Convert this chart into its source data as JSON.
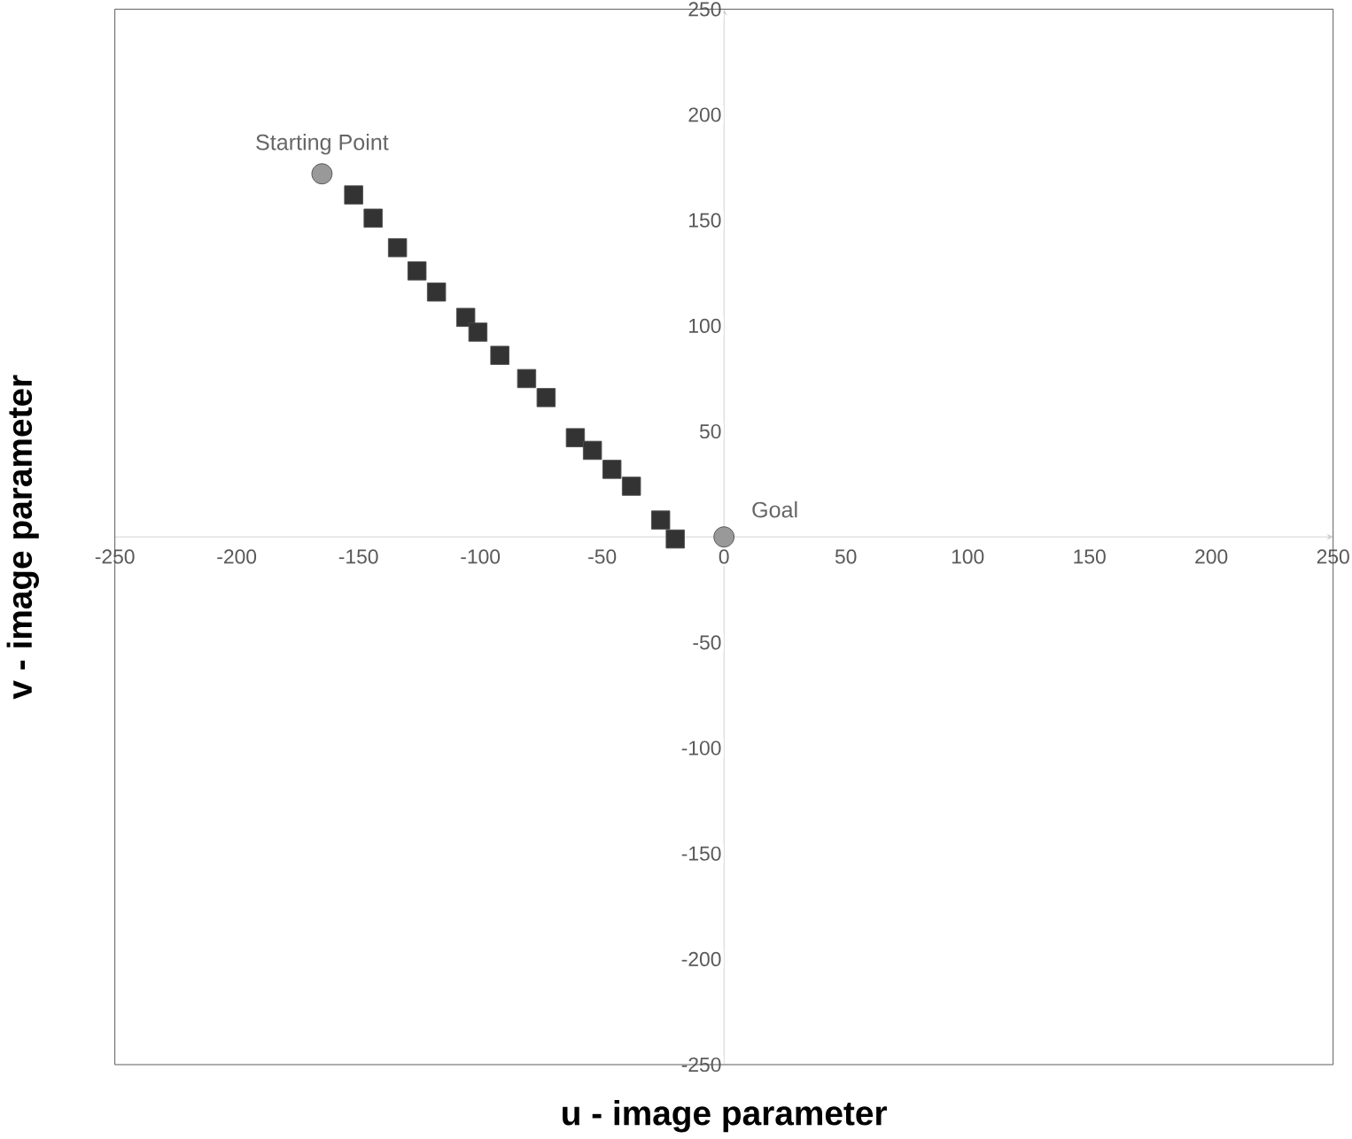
{
  "chart_data": {
    "type": "scatter",
    "xlabel": "u - image parameter",
    "ylabel": "v - image parameter",
    "xlim": [
      -250,
      250
    ],
    "ylim": [
      -250,
      250
    ],
    "xticks": [
      -250,
      -200,
      -150,
      -100,
      -50,
      0,
      50,
      100,
      150,
      200,
      250
    ],
    "yticks": [
      -250,
      -200,
      -150,
      -100,
      -50,
      {
        "value": 0,
        "label": null
      },
      50,
      100,
      150,
      200,
      250
    ],
    "series": [
      {
        "color": "#333333",
        "marker": "square",
        "x": [
          -152,
          -144,
          -134,
          -126,
          -118,
          -106,
          -101,
          -92,
          -81,
          -73,
          -61,
          -54,
          -46,
          -38,
          -26,
          -20
        ],
        "values": [
          162,
          151,
          137,
          126,
          116,
          104,
          97,
          86,
          75,
          66,
          47,
          41,
          32,
          24,
          8,
          -1
        ]
      },
      {
        "color": "#999999",
        "marker": "circle",
        "x": [
          -165,
          0
        ],
        "values": [
          172,
          0
        ]
      }
    ],
    "annotations": [
      {
        "text": "Starting Point",
        "x": -165,
        "y": 172
      },
      {
        "text": "Goal",
        "x": 0,
        "y": 0
      }
    ]
  }
}
